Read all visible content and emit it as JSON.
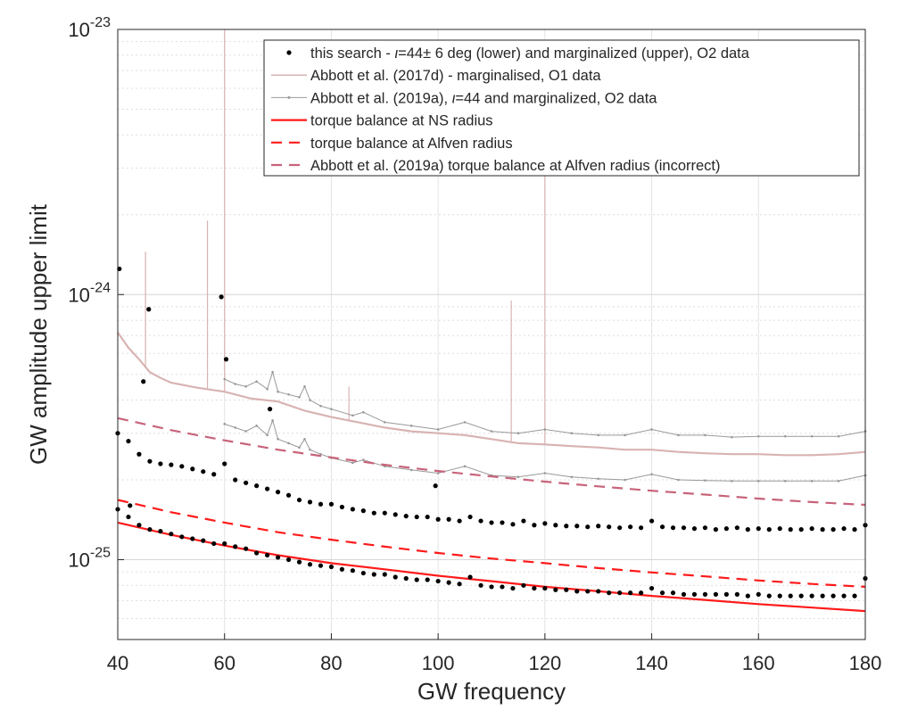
{
  "chart_data": {
    "type": "scatter",
    "xlabel": "GW frequency",
    "ylabel": "GW amplitude upper limit",
    "xlim": [
      40,
      180
    ],
    "ylim": [
      5e-26,
      1e-23
    ],
    "yscale": "log",
    "grid": true,
    "legend_position": "top-right",
    "x_ticks": [
      "40",
      "60",
      "80",
      "100",
      "120",
      "140",
      "160",
      "180"
    ],
    "y_ticks": [
      {
        "value": 1e-25,
        "base": "10",
        "exp": "-25"
      },
      {
        "value": 1e-24,
        "base": "10",
        "exp": "-24"
      },
      {
        "value": 1e-23,
        "base": "10",
        "exp": "-23"
      }
    ],
    "legend": [
      {
        "key": "search",
        "parts": [
          {
            "t": "this search - ",
            "italic": false
          },
          {
            "t": "ι",
            "italic": true
          },
          {
            "t": "=44± 6 deg (lower) and marginalized (upper), O2 data",
            "italic": false
          }
        ]
      },
      {
        "key": "o1",
        "parts": [
          {
            "t": "Abbott et al. (2017d) - marginalised, O1 data",
            "italic": false
          }
        ]
      },
      {
        "key": "o2",
        "parts": [
          {
            "t": "Abbott et al. (2019a), ",
            "italic": false
          },
          {
            "t": "ι",
            "italic": true
          },
          {
            "t": "=44 and marginalized, O2 data",
            "italic": false
          }
        ]
      },
      {
        "key": "ns",
        "parts": [
          {
            "t": "torque balance at NS radius",
            "italic": false
          }
        ]
      },
      {
        "key": "alfven",
        "parts": [
          {
            "t": "torque balance at Alfven radius",
            "italic": false
          }
        ]
      },
      {
        "key": "incorrect",
        "parts": [
          {
            "t": "Abbott et al. (2019a) torque balance at Alfven radius (incorrect)",
            "italic": false
          }
        ]
      }
    ],
    "colors": {
      "search": "#000000",
      "o1": "#d9b3b3",
      "o2": "#999999",
      "ns": "#ff1a1a",
      "alfven": "#ff1a1a",
      "incorrect": "#c8637a"
    },
    "series": [
      {
        "name": "torque balance at NS radius",
        "kind": "line",
        "style": "solid",
        "x": [
          40,
          50,
          60,
          70,
          80,
          90,
          100,
          110,
          120,
          130,
          140,
          150,
          160,
          170,
          180
        ],
        "y": [
          1.38e-25,
          1.24e-25,
          1.13e-25,
          1.04e-25,
          9.7e-26,
          9.2e-26,
          8.7e-26,
          8.3e-26,
          7.9e-26,
          7.6e-26,
          7.3e-26,
          7.05e-26,
          6.8e-26,
          6.6e-26,
          6.4e-26
        ]
      },
      {
        "name": "torque balance at Alfven radius",
        "kind": "line",
        "style": "dashed",
        "x": [
          40,
          50,
          60,
          70,
          80,
          90,
          100,
          110,
          120,
          130,
          140,
          150,
          160,
          170,
          180
        ],
        "y": [
          1.68e-25,
          1.51e-25,
          1.38e-25,
          1.27e-25,
          1.19e-25,
          1.12e-25,
          1.06e-25,
          1.01e-25,
          9.7e-26,
          9.3e-26,
          8.95e-26,
          8.65e-26,
          8.35e-26,
          8.1e-26,
          7.9e-26
        ]
      },
      {
        "name": "Abbott et al. (2019a) torque balance at Alfven radius (incorrect)",
        "kind": "line",
        "style": "dashed",
        "x": [
          40,
          50,
          60,
          70,
          80,
          90,
          100,
          110,
          120,
          130,
          140,
          150,
          160,
          170,
          180
        ],
        "y": [
          3.42e-25,
          3.08e-25,
          2.82e-25,
          2.6e-25,
          2.43e-25,
          2.28e-25,
          2.16e-25,
          2.06e-25,
          1.97e-25,
          1.89e-25,
          1.82e-25,
          1.76e-25,
          1.7e-25,
          1.65e-25,
          1.61e-25
        ]
      },
      {
        "name": "Abbott et al. (2017d) - marginalised, O1 data",
        "kind": "line",
        "style": "solid",
        "x": [
          40,
          42,
          44,
          46,
          48,
          50,
          55,
          60,
          65,
          70,
          75,
          80,
          85,
          90,
          95,
          100,
          105,
          110,
          115,
          120,
          125,
          130,
          135,
          140,
          145,
          150,
          155,
          160,
          165,
          170,
          175,
          180
        ],
        "y": [
          7.2e-25,
          6.3e-25,
          5.7e-25,
          5.1e-25,
          4.85e-25,
          4.65e-25,
          4.45e-25,
          4.3e-25,
          4.05e-25,
          3.95e-25,
          3.65e-25,
          3.45e-25,
          3.3e-25,
          3.15e-25,
          3.05e-25,
          3e-25,
          2.95e-25,
          2.85e-25,
          2.75e-25,
          2.72e-25,
          2.68e-25,
          2.65e-25,
          2.6e-25,
          2.6e-25,
          2.55e-25,
          2.52e-25,
          2.5e-25,
          2.5e-25,
          2.48e-25,
          2.48e-25,
          2.5e-25,
          2.55e-25
        ]
      },
      {
        "name": "Abbott et al. (2019a) marginalized, O2 data",
        "kind": "line-markers",
        "style": "solid",
        "x": [
          60,
          62,
          64,
          66,
          68,
          69,
          70,
          72,
          74,
          75,
          76,
          78,
          80,
          84,
          86,
          90,
          95,
          100,
          105,
          110,
          115,
          120,
          125,
          130,
          135,
          140,
          145,
          150,
          155,
          160,
          165,
          170,
          175,
          180
        ],
        "y": [
          4.8e-25,
          4.6e-25,
          4.5e-25,
          4.7e-25,
          4.4e-25,
          5.1e-25,
          4.3e-25,
          4.2e-25,
          4.1e-25,
          4.5e-25,
          4e-25,
          3.8e-25,
          3.7e-25,
          3.5e-25,
          3.6e-25,
          3.3e-25,
          3.2e-25,
          3.1e-25,
          3.3e-25,
          3.05e-25,
          3e-25,
          3.1e-25,
          3e-25,
          2.95e-25,
          2.95e-25,
          3.1e-25,
          2.95e-25,
          2.95e-25,
          2.9e-25,
          2.92e-25,
          2.92e-25,
          2.92e-25,
          2.92e-25,
          3.05e-25
        ]
      },
      {
        "name": "Abbott et al. (2019a) ι=44, O2 data",
        "kind": "line-markers",
        "style": "solid",
        "x": [
          60,
          62,
          64,
          66,
          68,
          69,
          70,
          72,
          74,
          75,
          76,
          78,
          80,
          84,
          86,
          90,
          95,
          100,
          105,
          110,
          115,
          120,
          125,
          130,
          135,
          140,
          145,
          150,
          155,
          160,
          165,
          170,
          175,
          180
        ],
        "y": [
          3.25e-25,
          3.15e-25,
          3.05e-25,
          3.2e-25,
          2.95e-25,
          3.35e-25,
          2.85e-25,
          2.75e-25,
          2.65e-25,
          2.85e-25,
          2.6e-25,
          2.5e-25,
          2.42e-25,
          2.32e-25,
          2.38e-25,
          2.25e-25,
          2.18e-25,
          2.12e-25,
          2.25e-25,
          2.08e-25,
          2.05e-25,
          2.12e-25,
          2.05e-25,
          2.02e-25,
          2e-25,
          2.1e-25,
          2e-25,
          1.99e-25,
          1.98e-25,
          1.98e-25,
          1.98e-25,
          1.98e-25,
          1.98e-25,
          2.08e-25
        ]
      },
      {
        "name": "this search marginalized (upper)",
        "kind": "points",
        "x": [
          40,
          42,
          44,
          46,
          48,
          50,
          52,
          54,
          56,
          58,
          60,
          62,
          64,
          66,
          68,
          70,
          72,
          74,
          76,
          78,
          80,
          82,
          84,
          86,
          88,
          90,
          92,
          94,
          96,
          98,
          100,
          102,
          104,
          106,
          108,
          110,
          112,
          114,
          116,
          118,
          120,
          122,
          124,
          126,
          128,
          130,
          132,
          134,
          136,
          138,
          140,
          142,
          144,
          146,
          148,
          150,
          152,
          154,
          156,
          158,
          160,
          162,
          164,
          166,
          168,
          170,
          172,
          174,
          176,
          178,
          180
        ],
        "y": [
          3e-25,
          2.8e-25,
          2.5e-25,
          2.35e-25,
          2.3e-25,
          2.28e-25,
          2.25e-25,
          2.2e-25,
          2.15e-25,
          2.1e-25,
          2.3e-25,
          2e-25,
          1.95e-25,
          1.9e-25,
          1.85e-25,
          1.8e-25,
          1.75e-25,
          1.68e-25,
          1.65e-25,
          1.62e-25,
          1.62e-25,
          1.58e-25,
          1.55e-25,
          1.53e-25,
          1.5e-25,
          1.5e-25,
          1.48e-25,
          1.46e-25,
          1.45e-25,
          1.45e-25,
          1.42e-25,
          1.42e-25,
          1.4e-25,
          1.45e-25,
          1.4e-25,
          1.38e-25,
          1.38e-25,
          1.36e-25,
          1.4e-25,
          1.35e-25,
          1.37e-25,
          1.35e-25,
          1.34e-25,
          1.34e-25,
          1.33e-25,
          1.34e-25,
          1.33e-25,
          1.32e-25,
          1.33e-25,
          1.32e-25,
          1.4e-25,
          1.33e-25,
          1.32e-25,
          1.32e-25,
          1.31e-25,
          1.32e-25,
          1.3e-25,
          1.31e-25,
          1.32e-25,
          1.3e-25,
          1.31e-25,
          1.3e-25,
          1.31e-25,
          1.3e-25,
          1.3e-25,
          1.31e-25,
          1.3e-25,
          1.3e-25,
          1.31e-25,
          1.3e-25,
          1.35e-25
        ]
      },
      {
        "name": "this search ι=44± 6 deg (lower)",
        "kind": "points",
        "x": [
          40,
          42,
          44,
          46,
          48,
          50,
          52,
          54,
          56,
          58,
          60,
          62,
          64,
          66,
          68,
          70,
          72,
          74,
          76,
          78,
          80,
          82,
          84,
          86,
          88,
          90,
          92,
          94,
          96,
          98,
          100,
          102,
          104,
          106,
          108,
          110,
          112,
          114,
          116,
          118,
          120,
          122,
          124,
          126,
          128,
          130,
          132,
          134,
          136,
          138,
          140,
          142,
          144,
          146,
          148,
          150,
          152,
          154,
          156,
          158,
          160,
          162,
          164,
          166,
          168,
          170,
          172,
          174,
          176,
          178,
          180
        ],
        "y": [
          1.55e-25,
          1.45e-25,
          1.35e-25,
          1.3e-25,
          1.28e-25,
          1.25e-25,
          1.22e-25,
          1.2e-25,
          1.18e-25,
          1.15e-25,
          1.15e-25,
          1.12e-25,
          1.1e-25,
          1.06e-25,
          1.04e-25,
          1.02e-25,
          1e-25,
          9.8e-26,
          9.6e-26,
          9.5e-26,
          9.4e-26,
          9.2e-26,
          9.1e-26,
          8.9e-26,
          8.8e-26,
          8.8e-26,
          8.6e-26,
          8.5e-26,
          8.4e-26,
          8.4e-26,
          8.3e-26,
          8.2e-26,
          8.1e-26,
          8.6e-26,
          8e-26,
          7.9e-26,
          7.9e-26,
          7.8e-26,
          8e-26,
          7.8e-26,
          7.8e-26,
          7.7e-26,
          7.7e-26,
          7.6e-26,
          7.6e-26,
          7.6e-26,
          7.5e-26,
          7.5e-26,
          7.5e-26,
          7.5e-26,
          7.8e-26,
          7.5e-26,
          7.5e-26,
          7.4e-26,
          7.4e-26,
          7.4e-26,
          7.4e-26,
          7.4e-26,
          7.4e-26,
          7.3e-26,
          7.4e-26,
          7.3e-26,
          7.3e-26,
          7.3e-26,
          7.3e-26,
          7.3e-26,
          7.3e-26,
          7.3e-26,
          7.3e-26,
          7.3e-26,
          8.5e-26
        ]
      },
      {
        "name": "this search outliers",
        "kind": "points",
        "x": [
          40.3,
          42.3,
          44.8,
          45.8,
          59.4,
          60.3,
          68.5,
          99.5
        ],
        "y": [
          1.25e-24,
          1.6e-25,
          4.7e-25,
          8.8e-25,
          9.8e-25,
          5.7e-25,
          3.7e-25,
          1.9e-25
        ]
      }
    ],
    "o1_spikes": [
      {
        "x": 45.2,
        "y": 1.45e-24
      },
      {
        "x": 56.8,
        "y": 1.9e-24
      },
      {
        "x": 60.0,
        "y": 1e-23
      },
      {
        "x": 83.3,
        "y": 4.5e-25
      },
      {
        "x": 113.7,
        "y": 9.5e-25
      },
      {
        "x": 120.0,
        "y": 2.9e-24
      }
    ]
  }
}
